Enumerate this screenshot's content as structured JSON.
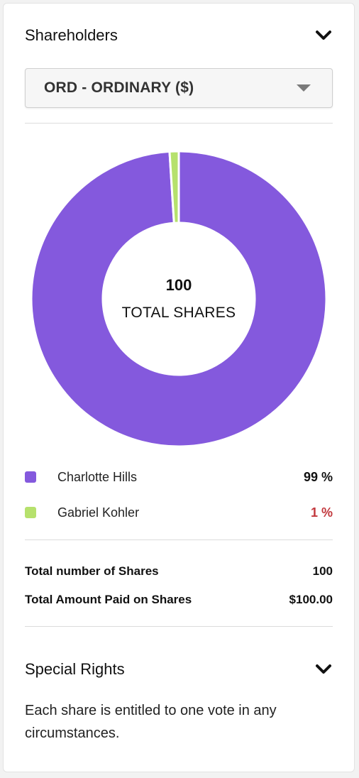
{
  "shareholders": {
    "title": "Shareholders",
    "share_class": "ORD - ORDINARY ($)",
    "center_value": "100",
    "center_label": "TOTAL SHARES",
    "holders": [
      {
        "name": "Charlotte Hills",
        "percent_label": "99 %",
        "percent": 99,
        "color": "#8459dd",
        "pct_color": "#111111"
      },
      {
        "name": "Gabriel Kohler",
        "percent_label": "1 %",
        "percent": 1,
        "color": "#b6e16d",
        "pct_color": "#c2383d"
      }
    ],
    "totals": {
      "number_label": "Total number of Shares",
      "number_value": "100",
      "paid_label": "Total Amount Paid on Shares",
      "paid_value": "$100.00"
    }
  },
  "special_rights": {
    "title": "Special Rights",
    "text": "Each share is entitled to one vote in any circumstances."
  },
  "chart_data": {
    "type": "pie",
    "categories": [
      "Charlotte Hills",
      "Gabriel Kohler"
    ],
    "values": [
      99,
      1
    ],
    "colors": [
      "#8459dd",
      "#b6e16d"
    ],
    "title": "",
    "donut": true
  }
}
